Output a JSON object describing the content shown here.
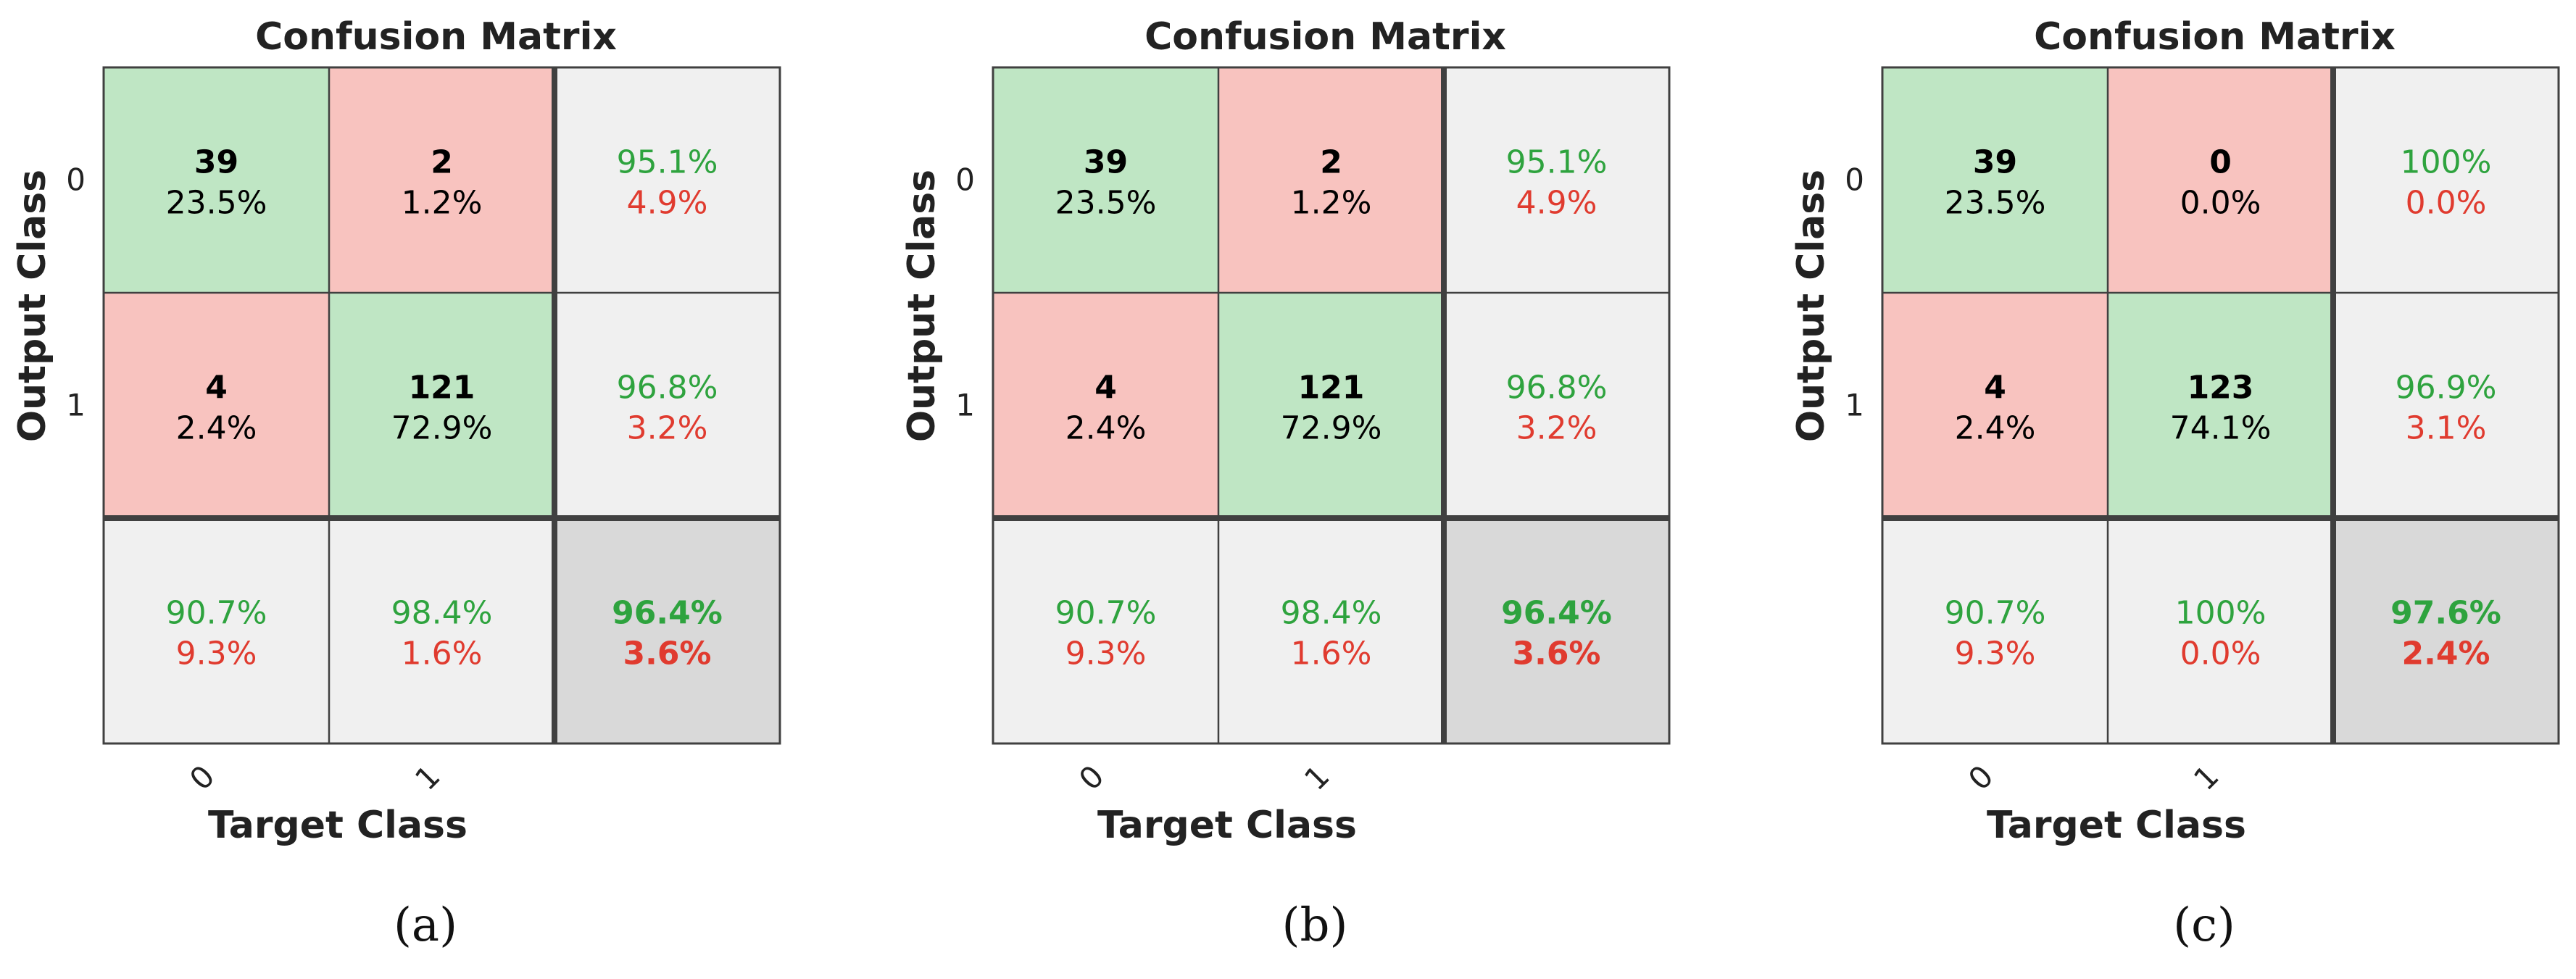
{
  "colors": {
    "correct_cell": "#bfe6c4",
    "error_cell": "#f8c3bf",
    "summary_cell": "#f0f0f0",
    "total_cell": "#d9d9d9",
    "green_text": "#2ea33e",
    "red_text": "#e03b2f",
    "grid": "#404040"
  },
  "chart_data": [
    {
      "type": "heatmap",
      "title": "Confusion Matrix",
      "xlabel": "Target Class",
      "ylabel": "Output Class",
      "x_ticks": [
        "0",
        "1"
      ],
      "y_ticks": [
        "0",
        "1"
      ],
      "caption": "(a)",
      "counts": [
        [
          39,
          2
        ],
        [
          4,
          121
        ]
      ],
      "cell_percents": [
        [
          "23.5%",
          "1.2%"
        ],
        [
          "2.4%",
          "72.9%"
        ]
      ],
      "row_summary": [
        [
          "95.1%",
          "4.9%"
        ],
        [
          "96.8%",
          "3.2%"
        ]
      ],
      "col_summary": [
        [
          "90.7%",
          "9.3%"
        ],
        [
          "98.4%",
          "1.6%"
        ]
      ],
      "overall": [
        "96.4%",
        "3.6%"
      ]
    },
    {
      "type": "heatmap",
      "title": "Confusion Matrix",
      "xlabel": "Target Class",
      "ylabel": "Output Class",
      "x_ticks": [
        "0",
        "1"
      ],
      "y_ticks": [
        "0",
        "1"
      ],
      "caption": "(b)",
      "counts": [
        [
          39,
          2
        ],
        [
          4,
          121
        ]
      ],
      "cell_percents": [
        [
          "23.5%",
          "1.2%"
        ],
        [
          "2.4%",
          "72.9%"
        ]
      ],
      "row_summary": [
        [
          "95.1%",
          "4.9%"
        ],
        [
          "96.8%",
          "3.2%"
        ]
      ],
      "col_summary": [
        [
          "90.7%",
          "9.3%"
        ],
        [
          "98.4%",
          "1.6%"
        ]
      ],
      "overall": [
        "96.4%",
        "3.6%"
      ]
    },
    {
      "type": "heatmap",
      "title": "Confusion Matrix",
      "xlabel": "Target Class",
      "ylabel": "Output Class",
      "x_ticks": [
        "0",
        "1"
      ],
      "y_ticks": [
        "0",
        "1"
      ],
      "caption": "(c)",
      "counts": [
        [
          39,
          0
        ],
        [
          4,
          123
        ]
      ],
      "cell_percents": [
        [
          "23.5%",
          "0.0%"
        ],
        [
          "2.4%",
          "74.1%"
        ]
      ],
      "row_summary": [
        [
          "100%",
          "0.0%"
        ],
        [
          "96.9%",
          "3.1%"
        ]
      ],
      "col_summary": [
        [
          "90.7%",
          "9.3%"
        ],
        [
          "100%",
          "0.0%"
        ]
      ],
      "overall": [
        "97.6%",
        "2.4%"
      ]
    }
  ]
}
